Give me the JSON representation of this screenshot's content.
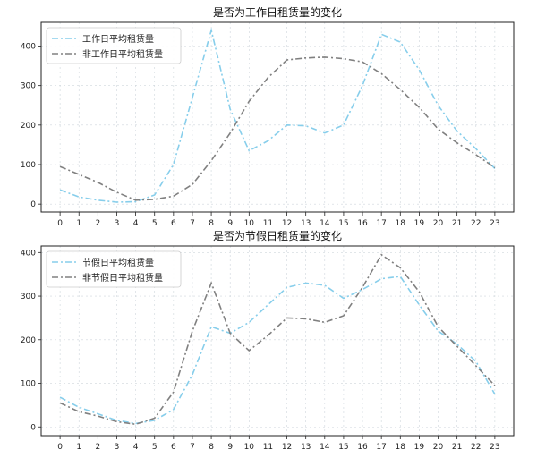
{
  "chart_data": [
    {
      "type": "line",
      "title": "是否为工作日租赁量的变化",
      "xlabel": "",
      "ylabel": "",
      "x": [
        0,
        1,
        2,
        3,
        4,
        5,
        6,
        7,
        8,
        9,
        10,
        11,
        12,
        13,
        14,
        15,
        16,
        17,
        18,
        19,
        20,
        21,
        22,
        23
      ],
      "xlim": [
        -1,
        24
      ],
      "ylim": [
        -20,
        460
      ],
      "yticks": [
        0,
        100,
        200,
        300,
        400
      ],
      "grid": true,
      "legend_position": "top-left",
      "series": [
        {
          "name": "工作日平均租赁量",
          "color": "#87ceeb",
          "dash": "dashdot",
          "values": [
            36,
            18,
            10,
            5,
            6,
            23,
            100,
            270,
            440,
            240,
            135,
            160,
            200,
            198,
            180,
            200,
            300,
            430,
            410,
            340,
            250,
            185,
            140,
            90
          ]
        },
        {
          "name": "非工作日平均租赁量",
          "color": "#808080",
          "dash": "dashdot",
          "values": [
            95,
            75,
            55,
            30,
            10,
            12,
            20,
            50,
            110,
            180,
            260,
            320,
            365,
            370,
            372,
            368,
            360,
            330,
            290,
            245,
            190,
            155,
            125,
            92
          ]
        }
      ]
    },
    {
      "type": "line",
      "title": "是否为节假日租赁量的变化",
      "xlabel": "",
      "ylabel": "",
      "x": [
        0,
        1,
        2,
        3,
        4,
        5,
        6,
        7,
        8,
        9,
        10,
        11,
        12,
        13,
        14,
        15,
        16,
        17,
        18,
        19,
        20,
        21,
        22,
        23
      ],
      "xlim": [
        -1,
        24
      ],
      "ylim": [
        -20,
        415
      ],
      "yticks": [
        0,
        100,
        200,
        300,
        400
      ],
      "grid": true,
      "legend_position": "top-left",
      "series": [
        {
          "name": "节假日平均租赁量",
          "color": "#87ceeb",
          "dash": "dashdot",
          "values": [
            68,
            45,
            30,
            15,
            8,
            15,
            40,
            120,
            230,
            215,
            240,
            280,
            320,
            330,
            325,
            295,
            315,
            340,
            345,
            280,
            220,
            190,
            150,
            75
          ]
        },
        {
          "name": "非节假日平均租赁量",
          "color": "#808080",
          "dash": "dashdot",
          "values": [
            55,
            35,
            25,
            12,
            6,
            20,
            80,
            220,
            330,
            215,
            175,
            210,
            250,
            248,
            240,
            255,
            320,
            395,
            365,
            310,
            230,
            185,
            140,
            95
          ]
        }
      ]
    }
  ]
}
